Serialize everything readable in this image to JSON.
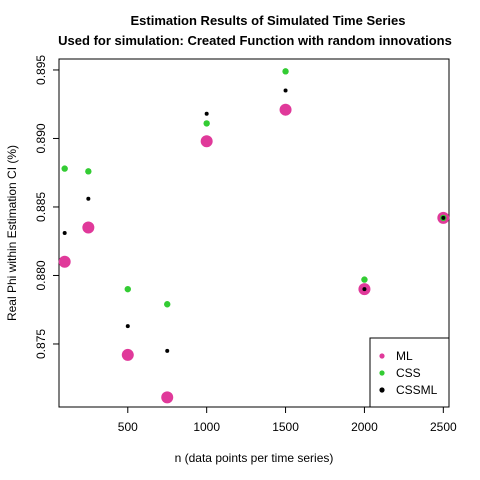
{
  "chart_data": {
    "type": "scatter",
    "title": "Estimation Results of Simulated Time Series",
    "subtitle": "Used for simulation: Created Function with random innovations",
    "xlabel": "n (data points per time series)",
    "ylabel": "Real Phi within Estimation CI (%)",
    "xlim": [
      64,
      2536
    ],
    "ylim": [
      0.8704,
      0.8958
    ],
    "x_ticks": [
      500,
      1000,
      1500,
      2000,
      2500
    ],
    "y_ticks": [
      0.875,
      0.88,
      0.885,
      0.89,
      0.895
    ],
    "x_tick_labels": [
      "500",
      "1000",
      "1500",
      "2000",
      "2500"
    ],
    "y_tick_labels": [
      "0.875",
      "0.880",
      "0.885",
      "0.890",
      "0.895"
    ],
    "grid": false,
    "legend_position": "bottom-right",
    "series": [
      {
        "name": "ML",
        "color": "#e0399a",
        "points": [
          {
            "x": 100,
            "y": 0.881
          },
          {
            "x": 250,
            "y": 0.8835
          },
          {
            "x": 500,
            "y": 0.8742
          },
          {
            "x": 750,
            "y": 0.8711
          },
          {
            "x": 1000,
            "y": 0.8898
          },
          {
            "x": 1500,
            "y": 0.8921
          },
          {
            "x": 2000,
            "y": 0.879
          },
          {
            "x": 2500,
            "y": 0.8842
          }
        ]
      },
      {
        "name": "CSS",
        "color": "#33cc33",
        "points": [
          {
            "x": 100,
            "y": 0.8878
          },
          {
            "x": 250,
            "y": 0.8876
          },
          {
            "x": 500,
            "y": 0.879
          },
          {
            "x": 750,
            "y": 0.8779
          },
          {
            "x": 1000,
            "y": 0.8911
          },
          {
            "x": 1500,
            "y": 0.8949
          },
          {
            "x": 2000,
            "y": 0.8797
          },
          {
            "x": 2500,
            "y": 0.8842
          }
        ]
      },
      {
        "name": "CSSML",
        "color": "#000000",
        "points": [
          {
            "x": 100,
            "y": 0.8831
          },
          {
            "x": 250,
            "y": 0.8856
          },
          {
            "x": 500,
            "y": 0.8763
          },
          {
            "x": 750,
            "y": 0.8745
          },
          {
            "x": 1000,
            "y": 0.8918
          },
          {
            "x": 1500,
            "y": 0.8935
          },
          {
            "x": 2000,
            "y": 0.879
          },
          {
            "x": 2500,
            "y": 0.8842
          }
        ]
      }
    ]
  }
}
